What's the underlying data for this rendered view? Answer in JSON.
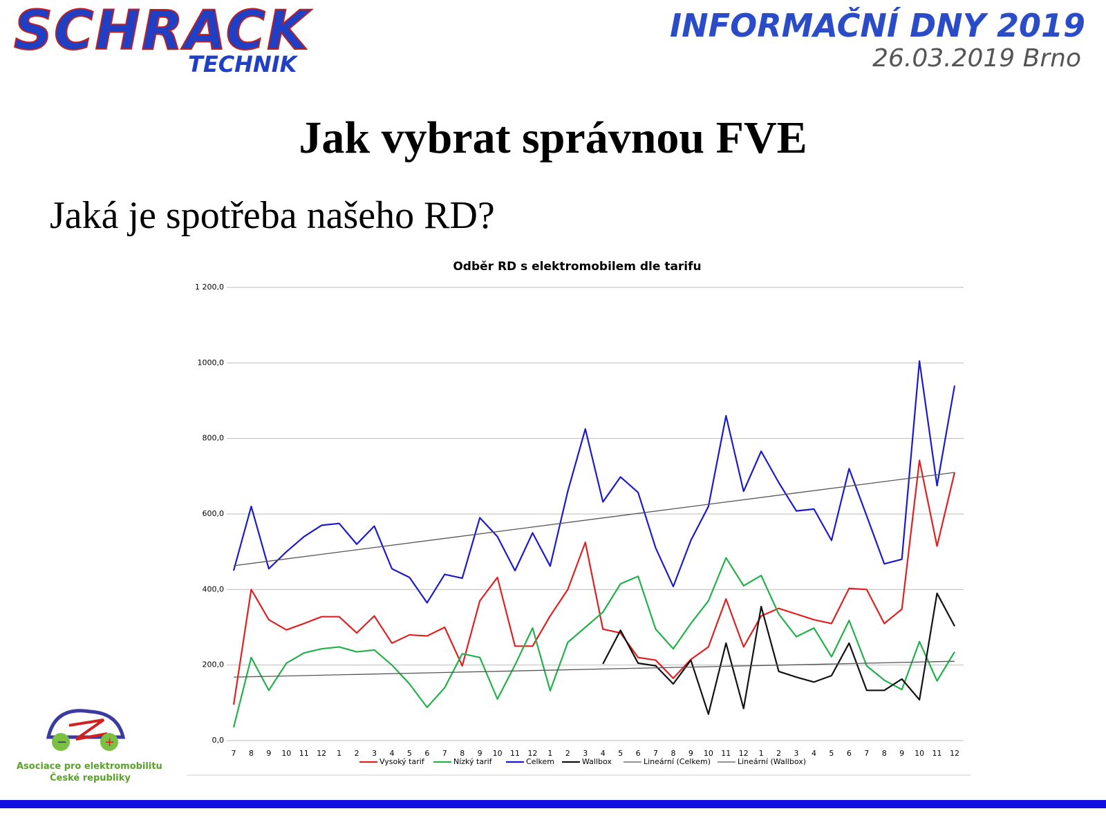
{
  "header": {
    "logo_main": "SCHRACK",
    "logo_sub": "TECHNIK",
    "event": "INFORMAČNÍ DNY 2019",
    "event_date": "26.03.2019 Brno"
  },
  "slide": {
    "title": "Jak vybrat správnou FVE",
    "subtitle": "Jaká je spotřeba našeho RD?"
  },
  "footer_logo": {
    "line1": "Asociace pro elektromobilitu",
    "line2": "České republiky"
  },
  "chart_data": {
    "type": "line",
    "title": "Odběr RD s elektromobilem dle tarifu",
    "categories": [
      "7",
      "8",
      "9",
      "10",
      "11",
      "12",
      "1",
      "2",
      "3",
      "4",
      "5",
      "6",
      "7",
      "8",
      "9",
      "10",
      "11",
      "12",
      "1",
      "2",
      "3",
      "4",
      "5",
      "6",
      "7",
      "8",
      "9",
      "10",
      "11",
      "12",
      "1",
      "2",
      "3",
      "4",
      "5",
      "6",
      "7",
      "8",
      "9",
      "10",
      "11",
      "12"
    ],
    "ylim": [
      0,
      1200
    ],
    "yticks": [
      {
        "value": 0,
        "label": "0,0"
      },
      {
        "value": 200,
        "label": "200,0"
      },
      {
        "value": 400,
        "label": "400,0"
      },
      {
        "value": 600,
        "label": "600,0"
      },
      {
        "value": 800,
        "label": "800,0"
      },
      {
        "value": 1000,
        "label": "1000,0"
      },
      {
        "value": 1200,
        "label": "1 200,0"
      }
    ],
    "grid": true,
    "legend": "bottom",
    "series": [
      {
        "name": "Vysoký tarif",
        "color": "#e02020",
        "values": [
          95,
          400,
          320,
          293,
          310,
          328,
          328,
          285,
          330,
          258,
          280,
          277,
          300,
          198,
          370,
          432,
          250,
          250,
          330,
          400,
          525,
          295,
          285,
          220,
          213,
          165,
          215,
          248,
          375,
          248,
          330,
          350,
          335,
          320,
          310,
          403,
          400,
          310,
          348,
          742,
          515,
          710
        ]
      },
      {
        "name": "Nízký tarif",
        "color": "#22b04b",
        "values": [
          35,
          220,
          133,
          205,
          232,
          243,
          248,
          235,
          240,
          200,
          150,
          88,
          140,
          230,
          220,
          110,
          200,
          298,
          132,
          260,
          300,
          340,
          415,
          435,
          295,
          243,
          310,
          370,
          484,
          410,
          437,
          335,
          275,
          298,
          222,
          318,
          198,
          160,
          135,
          262,
          158,
          235
        ]
      },
      {
        "name": "Celkem",
        "color": "#1a1acc",
        "values": [
          450,
          620,
          455,
          500,
          540,
          570,
          575,
          520,
          568,
          455,
          432,
          365,
          440,
          430,
          590,
          540,
          450,
          550,
          462,
          660,
          825,
          632,
          698,
          657,
          510,
          408,
          530,
          620,
          860,
          660,
          766,
          683,
          608,
          613,
          530,
          720,
          595,
          468,
          480,
          1005,
          675,
          940
        ]
      },
      {
        "name": "Wallbox",
        "color": "#111111",
        "values": [
          null,
          null,
          null,
          null,
          null,
          null,
          null,
          null,
          null,
          null,
          null,
          null,
          null,
          null,
          null,
          null,
          null,
          null,
          null,
          null,
          null,
          203,
          292,
          205,
          198,
          150,
          213,
          70,
          258,
          85,
          355,
          183,
          168,
          155,
          172,
          258,
          133,
          133,
          163,
          108,
          390,
          303
        ]
      },
      {
        "name": "Lineární (Celkem)",
        "color": "#555555",
        "trend": [
          463,
          710
        ]
      },
      {
        "name": "Lineární (Wallbox)",
        "color": "#555555",
        "trend": [
          168,
          210
        ]
      }
    ]
  }
}
